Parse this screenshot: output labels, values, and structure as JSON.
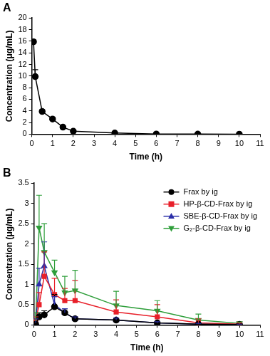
{
  "chart_data": [
    {
      "type": "line",
      "title": "A",
      "x_label": "Time (h)",
      "y_label": "Concentration (μg/mL)",
      "x": [
        0.083,
        0.167,
        0.5,
        1,
        1.5,
        2,
        4,
        6,
        8,
        10
      ],
      "values": [
        15.9,
        9.9,
        3.9,
        2.6,
        1.2,
        0.5,
        0.2,
        0.03,
        0.01,
        0.0
      ],
      "errors": [
        0.3,
        1.2,
        0.3,
        0.3,
        0.2,
        0.1,
        0.05,
        0.02,
        0.01,
        0.01
      ],
      "color": "#000000",
      "marker": "circle",
      "xlim": [
        0,
        11
      ],
      "xticks": [
        0,
        1,
        2,
        3,
        4,
        5,
        6,
        7,
        8,
        9,
        10,
        11
      ],
      "ylim": [
        0,
        20
      ],
      "yticks": [
        0,
        2,
        4,
        6,
        8,
        10,
        12,
        14,
        16,
        18,
        20
      ],
      "grid": false
    },
    {
      "type": "line",
      "title": "B",
      "x_label": "Time (h)",
      "y_label": "Concentration (μg/mL)",
      "x": [
        0.083,
        0.25,
        0.5,
        1,
        1.5,
        2,
        4,
        6,
        8,
        10
      ],
      "series": [
        {
          "name": "Frax by ig",
          "color": "#000000",
          "marker": "circle",
          "values": [
            0.02,
            0.2,
            0.25,
            0.45,
            0.3,
            0.15,
            0.12,
            0.05,
            0.02,
            0.01
          ],
          "errors": [
            0.05,
            0.1,
            0.1,
            0.3,
            0.1,
            0.05,
            0.05,
            0.03,
            0.02,
            0.01
          ]
        },
        {
          "name": "HP-β-CD-Frax by ig",
          "color": "#e8202a",
          "marker": "square",
          "values": [
            0.1,
            0.5,
            1.2,
            0.75,
            0.6,
            0.6,
            0.32,
            0.2,
            0.05,
            0.02
          ],
          "errors": [
            0.1,
            0.3,
            0.6,
            0.4,
            0.3,
            0.5,
            0.3,
            0.3,
            0.1,
            0.03
          ]
        },
        {
          "name": "SBE-β-CD-Frax by ig",
          "color": "#2b2fa8",
          "marker": "triangle",
          "values": [
            0.05,
            1.0,
            1.45,
            0.5,
            0.3,
            0.15,
            0.12,
            0.05,
            0.02,
            0.01
          ],
          "errors": [
            0.1,
            0.4,
            0.6,
            0.2,
            0.1,
            0.05,
            0.05,
            0.03,
            0.02,
            0.01
          ]
        },
        {
          "name": "G₂-β-CD-Frax by ig",
          "color": "#2e9e3a",
          "marker": "triangle-down",
          "values": [
            0.1,
            2.4,
            1.8,
            1.3,
            0.8,
            0.85,
            0.48,
            0.35,
            0.12,
            0.04
          ],
          "errors": [
            0.2,
            0.8,
            0.7,
            0.3,
            0.4,
            0.5,
            0.35,
            0.25,
            0.15,
            0.03
          ]
        }
      ],
      "xlim": [
        0,
        11
      ],
      "xticks": [
        0,
        1,
        2,
        3,
        4,
        5,
        6,
        7,
        8,
        9,
        10,
        11
      ],
      "ylim": [
        0,
        3.5
      ],
      "yticks": [
        0,
        0.5,
        1,
        1.5,
        2,
        2.5,
        3,
        3.5
      ],
      "grid": false,
      "legend": "upper right"
    }
  ]
}
